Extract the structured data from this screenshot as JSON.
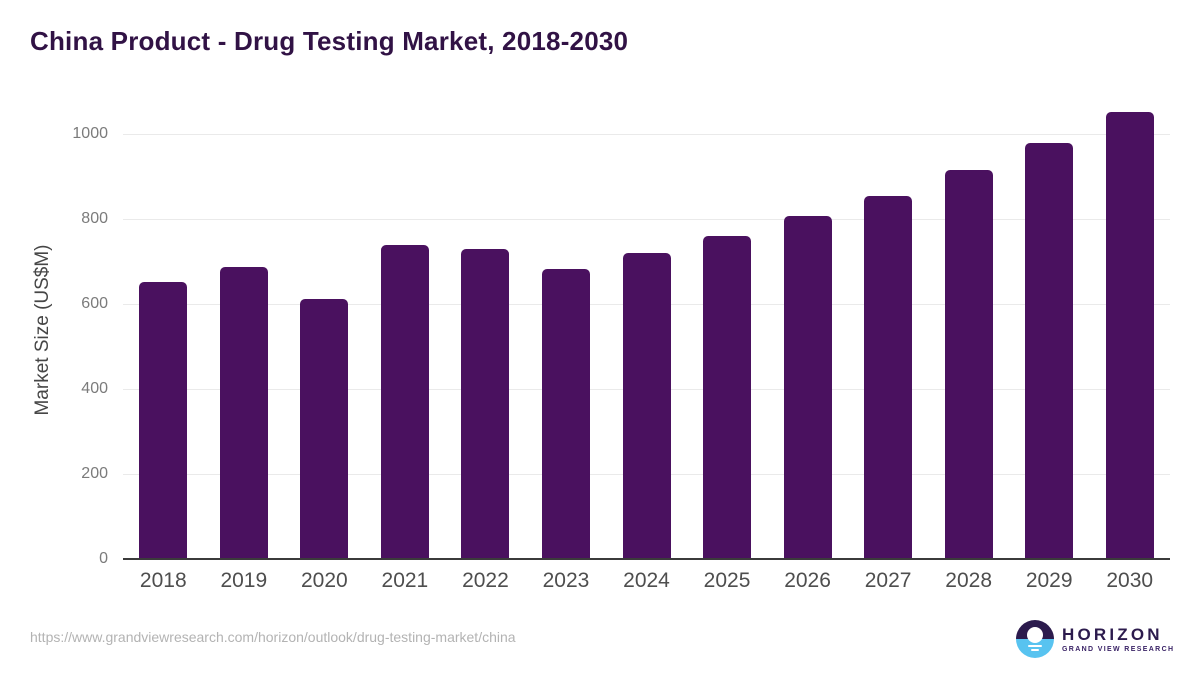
{
  "title": "China Product - Drug Testing Market, 2018-2030",
  "chart_data": {
    "type": "bar",
    "title": "China Product - Drug Testing Market, 2018-2030",
    "xlabel": "",
    "ylabel": "Market Size (US$M)",
    "categories": [
      "2018",
      "2019",
      "2020",
      "2021",
      "2022",
      "2023",
      "2024",
      "2025",
      "2026",
      "2027",
      "2028",
      "2029",
      "2030"
    ],
    "values": [
      651,
      686,
      611,
      739,
      729,
      682,
      720,
      760,
      806,
      855,
      915,
      978,
      1052
    ],
    "ylim": [
      0,
      1068
    ],
    "yticks": [
      0,
      200,
      400,
      600,
      800,
      1000
    ],
    "grid": true,
    "legend": false,
    "bar_color": "#4a115f"
  },
  "colors": {
    "bar": "#4a115f",
    "title": "#311245",
    "grid": "#eaeaea",
    "axis_line": "#3b3b3b",
    "y_tick": "#7b7b7b",
    "x_label": "#4e4e4e",
    "url": "#b3b3b3",
    "logo_purple": "#2c1b4d",
    "logo_blue": "#58c3f0"
  },
  "footer": {
    "source_url": "https://www.grandviewresearch.com/horizon/outlook/drug-testing-market/china"
  },
  "logo": {
    "name": "HORIZON",
    "subtitle": "GRAND VIEW RESEARCH"
  }
}
